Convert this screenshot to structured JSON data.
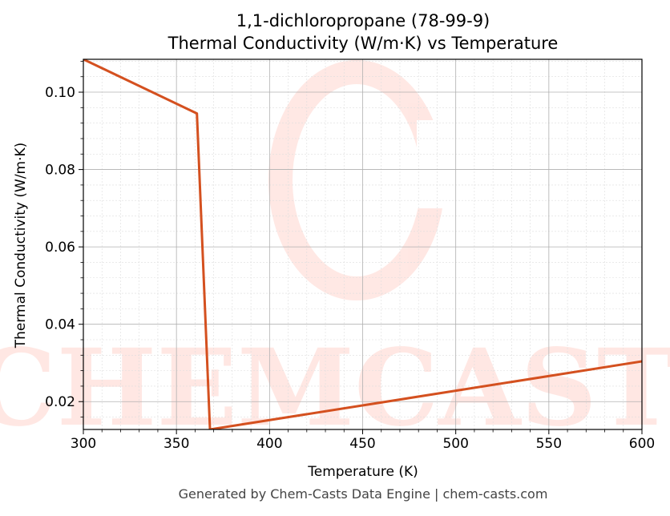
{
  "chart_data": {
    "type": "line",
    "title_line1": "1,1-dichloropropane (78-99-9)",
    "title_line2": "Thermal Conductivity (W/m·K) vs Temperature",
    "xlabel": "Temperature (K)",
    "ylabel": "Thermal Conductivity (W/m·K)",
    "xlim": [
      300,
      600
    ],
    "ylim": [
      0.0128,
      0.1085
    ],
    "xticks": [
      300,
      350,
      400,
      450,
      500,
      550,
      600
    ],
    "xtick_labels": [
      "300",
      "350",
      "400",
      "450",
      "500",
      "550",
      "600"
    ],
    "yticks": [
      0.02,
      0.04,
      0.06,
      0.08,
      0.1
    ],
    "ytick_labels": [
      "0.02",
      "0.04",
      "0.06",
      "0.08",
      "0.10"
    ],
    "grid": true,
    "legend": "none",
    "series": [
      {
        "color": "#d4501f",
        "x": [
          300,
          361,
          368,
          600
        ],
        "y": [
          0.1085,
          0.0945,
          0.0128,
          0.0304
        ]
      }
    ],
    "watermark": "CHEMCASTS"
  },
  "footer": "Generated by Chem-Casts Data Engine | chem-casts.com"
}
